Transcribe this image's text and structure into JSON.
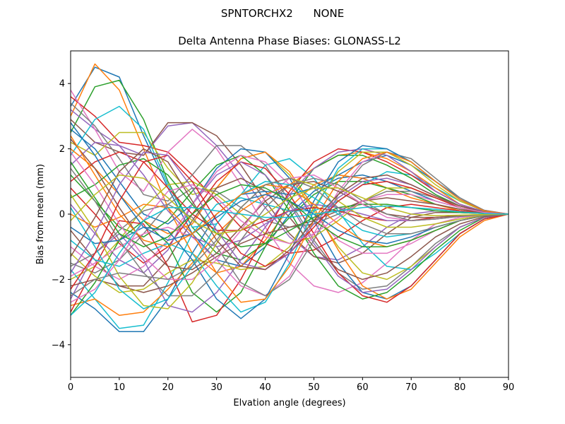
{
  "chart_data": {
    "type": "line",
    "suptitle": "SPNTORCHX2      NONE",
    "title": "Delta Antenna Phase Biases: GLONASS-L2",
    "xlabel": "Elvation angle (degrees)",
    "ylabel": "Bias from mean (mm)",
    "xlim": [
      0,
      90
    ],
    "ylim": [
      -5,
      5
    ],
    "xticks": [
      0,
      10,
      20,
      30,
      40,
      50,
      60,
      70,
      80,
      90
    ],
    "yticks": [
      -4,
      -2,
      0,
      2,
      4
    ],
    "grid": false,
    "legend": "none",
    "x": [
      0,
      5,
      10,
      15,
      20,
      25,
      30,
      35,
      40,
      45,
      50,
      55,
      60,
      65,
      70,
      75,
      80,
      85,
      90
    ],
    "colors": [
      "#1f77b4",
      "#ff7f0e",
      "#2ca02c",
      "#d62728",
      "#9467bd",
      "#8c564b",
      "#e377c2",
      "#7f7f7f",
      "#bcbd22",
      "#17becf"
    ],
    "series": [
      {
        "values": [
          3.3,
          4.5,
          4.2,
          2.4,
          0.8,
          -0.6,
          -1.4,
          -1.6,
          -1.0,
          0.0,
          0.7,
          1.1,
          1.2,
          1.0,
          0.7,
          0.4,
          0.2,
          0.05,
          0.0
        ]
      },
      {
        "values": [
          3.0,
          4.6,
          3.8,
          2.0,
          0.2,
          -1.2,
          -1.8,
          -1.6,
          -0.8,
          0.2,
          0.9,
          1.2,
          1.1,
          0.8,
          0.5,
          0.3,
          0.1,
          0.04,
          0.0
        ]
      },
      {
        "values": [
          2.5,
          3.9,
          4.1,
          2.9,
          1.0,
          -0.4,
          -1.2,
          -1.4,
          -0.9,
          -0.1,
          0.6,
          1.0,
          1.0,
          0.8,
          0.6,
          0.3,
          0.15,
          0.05,
          0.0
        ]
      },
      {
        "values": [
          3.6,
          3.0,
          2.2,
          2.1,
          1.9,
          1.2,
          0.4,
          -0.4,
          -0.9,
          -1.2,
          -1.1,
          -0.7,
          -0.2,
          0.2,
          0.3,
          0.2,
          0.1,
          0.03,
          0.0
        ]
      },
      {
        "values": [
          3.2,
          2.6,
          2.1,
          1.8,
          2.7,
          2.8,
          2.1,
          1.2,
          0.2,
          -0.7,
          -1.3,
          -1.4,
          -1.0,
          -0.4,
          0.0,
          0.1,
          0.05,
          0.02,
          0.0
        ]
      },
      {
        "values": [
          2.9,
          2.2,
          1.9,
          1.8,
          2.8,
          2.8,
          2.4,
          1.5,
          0.4,
          -0.6,
          -1.3,
          -1.5,
          -1.2,
          -0.6,
          -0.1,
          0.05,
          0.05,
          0.02,
          0.0
        ]
      },
      {
        "values": [
          3.8,
          2.6,
          1.3,
          0.7,
          1.9,
          2.6,
          2.0,
          0.9,
          -0.4,
          -1.5,
          -2.2,
          -2.4,
          -2.1,
          -1.5,
          -0.8,
          -0.3,
          -0.1,
          -0.03,
          0.0
        ]
      },
      {
        "values": [
          3.4,
          2.7,
          1.7,
          0.6,
          0.4,
          1.2,
          2.1,
          2.1,
          1.5,
          0.4,
          -0.8,
          -1.8,
          -2.3,
          -2.2,
          -1.6,
          -0.9,
          -0.4,
          -0.1,
          0.0
        ]
      },
      {
        "values": [
          2.2,
          1.8,
          2.5,
          2.5,
          1.4,
          0.6,
          0.8,
          1.7,
          1.9,
          1.2,
          0.1,
          -1.0,
          -1.8,
          -2.0,
          -1.6,
          -1.0,
          -0.4,
          -0.1,
          0.0
        ]
      },
      {
        "values": [
          1.8,
          2.9,
          3.3,
          2.6,
          0.9,
          -0.4,
          -0.3,
          0.6,
          1.5,
          1.7,
          1.1,
          0.1,
          -0.9,
          -1.6,
          -1.7,
          -1.2,
          -0.6,
          -0.15,
          0.0
        ]
      },
      {
        "values": [
          2.6,
          2.0,
          1.0,
          0.0,
          -0.3,
          0.3,
          1.4,
          2.0,
          1.9,
          1.1,
          -0.2,
          -1.5,
          -2.4,
          -2.6,
          -2.2,
          -1.4,
          -0.6,
          -0.15,
          0.0
        ]
      },
      {
        "values": [
          2.0,
          1.4,
          0.6,
          -0.2,
          -0.6,
          -0.3,
          0.8,
          1.7,
          1.9,
          1.3,
          0.2,
          -1.1,
          -2.2,
          -2.6,
          -2.3,
          -1.5,
          -0.7,
          -0.2,
          0.0
        ]
      },
      {
        "values": [
          1.2,
          0.4,
          -0.4,
          -0.7,
          -0.2,
          0.7,
          1.5,
          1.8,
          1.2,
          0.1,
          -1.2,
          -2.2,
          -2.6,
          -2.4,
          -1.8,
          -1.1,
          -0.5,
          -0.1,
          0.0
        ]
      },
      {
        "values": [
          0.8,
          0.0,
          -0.9,
          -1.5,
          -1.0,
          0.0,
          1.0,
          1.6,
          1.4,
          0.6,
          -0.6,
          -1.8,
          -2.5,
          -2.7,
          -2.2,
          -1.4,
          -0.6,
          -0.15,
          0.0
        ]
      },
      {
        "values": [
          0.3,
          -0.6,
          -1.4,
          -1.8,
          -1.1,
          0.3,
          1.2,
          1.6,
          1.2,
          0.3,
          -0.9,
          -1.9,
          -2.4,
          -2.3,
          -1.7,
          -1.0,
          -0.4,
          -0.1,
          0.0
        ]
      },
      {
        "values": [
          -0.5,
          -1.4,
          -2.2,
          -2.2,
          -1.4,
          -0.2,
          0.8,
          1.1,
          0.7,
          -0.1,
          -1.0,
          -1.7,
          -2.0,
          -1.8,
          -1.3,
          -0.7,
          -0.3,
          -0.08,
          0.0
        ]
      },
      {
        "values": [
          -1.0,
          -1.6,
          -2.0,
          -1.6,
          -0.8,
          0.3,
          1.3,
          1.8,
          1.6,
          0.9,
          0.0,
          -0.8,
          -1.2,
          -1.2,
          -0.9,
          -0.5,
          -0.2,
          -0.05,
          0.0
        ]
      },
      {
        "values": [
          -1.5,
          -1.8,
          -1.4,
          -0.6,
          0.3,
          0.8,
          0.7,
          0.2,
          -0.2,
          -0.4,
          -0.3,
          0.0,
          0.4,
          0.7,
          0.7,
          0.5,
          0.25,
          0.08,
          0.0
        ]
      },
      {
        "values": [
          -2.0,
          -1.6,
          -0.8,
          0.2,
          0.9,
          1.0,
          0.6,
          0.0,
          -0.6,
          -0.9,
          -0.7,
          -0.2,
          0.4,
          0.8,
          0.8,
          0.5,
          0.2,
          0.06,
          0.0
        ]
      },
      {
        "values": [
          -1.7,
          -2.6,
          -3.5,
          -3.4,
          -2.1,
          -0.6,
          0.3,
          0.5,
          0.3,
          0.1,
          0.1,
          0.4,
          0.9,
          1.3,
          1.2,
          0.8,
          0.4,
          0.1,
          0.0
        ]
      },
      {
        "values": [
          -2.4,
          -2.9,
          -3.6,
          -3.6,
          -2.6,
          -1.2,
          0.0,
          0.6,
          0.7,
          0.6,
          0.8,
          1.2,
          1.6,
          1.8,
          1.5,
          1.0,
          0.5,
          0.1,
          0.0
        ]
      },
      {
        "values": [
          -2.8,
          -2.6,
          -3.1,
          -3.0,
          -2.3,
          -1.5,
          -0.6,
          0.1,
          0.6,
          0.9,
          1.4,
          1.8,
          1.9,
          1.7,
          1.3,
          0.8,
          0.3,
          0.08,
          0.0
        ]
      },
      {
        "values": [
          -3.1,
          -2.1,
          -0.8,
          -0.2,
          -0.9,
          -2.4,
          -3.0,
          -2.4,
          -1.0,
          0.4,
          1.4,
          1.8,
          1.8,
          1.5,
          1.1,
          0.6,
          0.25,
          0.06,
          0.0
        ]
      },
      {
        "values": [
          -3.0,
          -1.6,
          -0.2,
          -0.3,
          -1.6,
          -3.3,
          -3.1,
          -2.0,
          -0.6,
          0.7,
          1.6,
          2.0,
          1.9,
          1.6,
          1.2,
          0.7,
          0.3,
          0.08,
          0.0
        ]
      },
      {
        "values": [
          -2.6,
          -1.2,
          -0.6,
          -1.4,
          -2.8,
          -3.0,
          -2.4,
          -1.4,
          -0.4,
          0.6,
          1.4,
          1.9,
          2.0,
          1.8,
          1.3,
          0.7,
          0.3,
          0.08,
          0.0
        ]
      },
      {
        "values": [
          -2.2,
          -2.0,
          -2.2,
          -2.4,
          -2.2,
          -1.8,
          -1.3,
          -0.9,
          -0.6,
          -0.4,
          -0.2,
          0.1,
          0.4,
          0.5,
          0.4,
          0.3,
          0.15,
          0.04,
          0.0
        ]
      },
      {
        "values": [
          -1.9,
          -1.5,
          -1.0,
          -0.6,
          -0.4,
          -0.7,
          -1.4,
          -2.2,
          -2.5,
          -1.9,
          -0.6,
          0.7,
          1.6,
          1.9,
          1.6,
          1.0,
          0.45,
          0.12,
          0.0
        ]
      },
      {
        "values": [
          -1.6,
          -1.2,
          -0.5,
          0.1,
          0.3,
          -0.1,
          -1.0,
          -2.1,
          -2.5,
          -2.0,
          -0.8,
          0.6,
          1.5,
          1.9,
          1.7,
          1.1,
          0.5,
          0.12,
          0.0
        ]
      },
      {
        "values": [
          -1.2,
          -1.9,
          -2.4,
          -2.3,
          -1.8,
          -1.4,
          -1.5,
          -1.7,
          -1.6,
          -1.0,
          0.2,
          1.3,
          1.9,
          1.9,
          1.5,
          0.9,
          0.4,
          0.1,
          0.0
        ]
      },
      {
        "values": [
          -0.8,
          -1.4,
          -1.6,
          -1.2,
          -0.9,
          -1.2,
          -2.2,
          -3.0,
          -2.7,
          -1.5,
          0.1,
          1.4,
          2.0,
          2.0,
          1.6,
          1.0,
          0.45,
          0.1,
          0.0
        ]
      },
      {
        "values": [
          -0.4,
          -0.9,
          -0.8,
          -0.4,
          -0.5,
          -1.4,
          -2.6,
          -3.2,
          -2.6,
          -1.2,
          0.4,
          1.6,
          2.1,
          2.0,
          1.6,
          1.0,
          0.45,
          0.1,
          0.0
        ]
      },
      {
        "values": [
          0.0,
          -0.4,
          -0.1,
          0.3,
          0.2,
          -0.6,
          -1.8,
          -2.7,
          -2.6,
          -1.6,
          -0.2,
          1.0,
          1.7,
          1.9,
          1.6,
          1.0,
          0.45,
          0.1,
          0.0
        ]
      },
      {
        "values": [
          0.5,
          0.9,
          1.5,
          1.7,
          1.2,
          0.3,
          -0.6,
          -1.0,
          -0.9,
          -0.5,
          -0.1,
          0.2,
          0.3,
          0.3,
          0.2,
          0.1,
          0.05,
          0.02,
          0.0
        ]
      },
      {
        "values": [
          1.0,
          1.6,
          1.9,
          1.6,
          0.8,
          0.0,
          -0.5,
          -0.5,
          -0.2,
          0.1,
          0.2,
          0.1,
          -0.1,
          -0.2,
          -0.2,
          -0.1,
          -0.05,
          -0.02,
          0.0
        ]
      },
      {
        "values": [
          1.5,
          2.2,
          2.1,
          1.2,
          0.1,
          -0.7,
          -1.0,
          -0.8,
          -0.3,
          0.1,
          0.3,
          0.2,
          0.0,
          -0.2,
          -0.2,
          -0.15,
          -0.07,
          -0.02,
          0.0
        ]
      },
      {
        "values": [
          2.3,
          1.4,
          0.2,
          -0.9,
          -1.6,
          -1.7,
          -1.2,
          -0.4,
          0.4,
          0.9,
          1.0,
          0.7,
          0.3,
          0.0,
          -0.1,
          -0.1,
          -0.05,
          -0.02,
          0.0
        ]
      },
      {
        "values": [
          1.9,
          0.9,
          -0.3,
          -1.3,
          -2.0,
          -2.0,
          -1.4,
          -0.5,
          0.5,
          1.1,
          1.2,
          0.8,
          0.3,
          -0.1,
          -0.2,
          -0.15,
          -0.07,
          -0.02,
          0.0
        ]
      },
      {
        "values": [
          1.4,
          0.4,
          -0.8,
          -1.8,
          -2.5,
          -2.5,
          -1.8,
          -0.8,
          0.2,
          0.9,
          1.1,
          0.9,
          0.4,
          0.0,
          -0.2,
          -0.15,
          -0.07,
          -0.02,
          0.0
        ]
      },
      {
        "values": [
          0.6,
          -0.5,
          -1.9,
          -2.8,
          -2.9,
          -2.1,
          -0.9,
          0.2,
          0.9,
          1.1,
          0.9,
          0.4,
          -0.1,
          -0.4,
          -0.4,
          -0.3,
          -0.15,
          -0.04,
          0.0
        ]
      },
      {
        "values": [
          0.2,
          -1.0,
          -2.3,
          -2.9,
          -2.6,
          -1.6,
          -0.3,
          0.6,
          1.0,
          0.9,
          0.5,
          0.0,
          -0.5,
          -0.7,
          -0.6,
          -0.4,
          -0.2,
          -0.05,
          0.0
        ]
      },
      {
        "values": [
          2.8,
          1.8,
          0.6,
          -0.4,
          -0.8,
          -0.6,
          -0.1,
          0.4,
          0.6,
          0.4,
          0.0,
          -0.5,
          -0.8,
          -0.9,
          -0.7,
          -0.4,
          -0.2,
          -0.05,
          0.0
        ]
      },
      {
        "values": [
          2.4,
          1.2,
          0.0,
          -0.8,
          -1.0,
          -0.6,
          0.0,
          0.6,
          0.9,
          0.8,
          0.3,
          -0.3,
          -0.8,
          -1.0,
          -0.8,
          -0.5,
          -0.2,
          -0.05,
          0.0
        ]
      },
      {
        "values": [
          1.6,
          0.5,
          -0.6,
          -1.0,
          -0.7,
          0.0,
          0.6,
          0.9,
          0.8,
          0.4,
          -0.2,
          -0.7,
          -1.0,
          -1.0,
          -0.8,
          -0.5,
          -0.2,
          -0.05,
          0.0
        ]
      },
      {
        "values": [
          -2.3,
          -1.2,
          0.4,
          1.6,
          1.8,
          1.0,
          -0.2,
          -1.2,
          -1.6,
          -1.2,
          -0.4,
          0.4,
          0.9,
          1.0,
          0.8,
          0.5,
          0.2,
          0.05,
          0.0
        ]
      },
      {
        "values": [
          -1.8,
          -0.6,
          0.9,
          1.9,
          1.8,
          0.8,
          -0.5,
          -1.5,
          -1.7,
          -1.2,
          -0.3,
          0.5,
          1.0,
          1.1,
          0.9,
          0.55,
          0.25,
          0.06,
          0.0
        ]
      },
      {
        "values": [
          -1.3,
          -0.1,
          1.3,
          2.0,
          1.6,
          0.4,
          -0.8,
          -1.6,
          -1.7,
          -1.1,
          -0.2,
          0.6,
          1.1,
          1.2,
          0.9,
          0.55,
          0.25,
          0.06,
          0.0
        ]
      },
      {
        "values": [
          -2.7,
          -2.3,
          -1.4,
          -0.2,
          0.7,
          0.9,
          0.5,
          -0.2,
          -0.7,
          -0.9,
          -0.6,
          -0.1,
          0.4,
          0.6,
          0.6,
          0.4,
          0.2,
          0.05,
          0.0
        ]
      },
      {
        "values": [
          -2.5,
          -2.0,
          -1.8,
          -1.9,
          -2.0,
          -1.6,
          -0.8,
          0.2,
          0.9,
          1.1,
          0.8,
          0.2,
          -0.3,
          -0.6,
          -0.6,
          -0.4,
          -0.2,
          -0.05,
          0.0
        ]
      },
      {
        "values": [
          -0.2,
          0.6,
          1.2,
          1.1,
          0.5,
          -0.2,
          -0.6,
          -0.5,
          0.0,
          0.5,
          0.8,
          0.8,
          0.5,
          0.2,
          0.0,
          -0.05,
          -0.03,
          -0.01,
          0.0
        ]
      },
      {
        "values": [
          -3.1,
          -2.4,
          -1.2,
          -0.2,
          0.2,
          0.2,
          0.1,
          0.0,
          -0.1,
          -0.1,
          0.0,
          0.1,
          0.2,
          0.25,
          0.2,
          0.15,
          0.07,
          0.02,
          0.0
        ]
      }
    ]
  }
}
